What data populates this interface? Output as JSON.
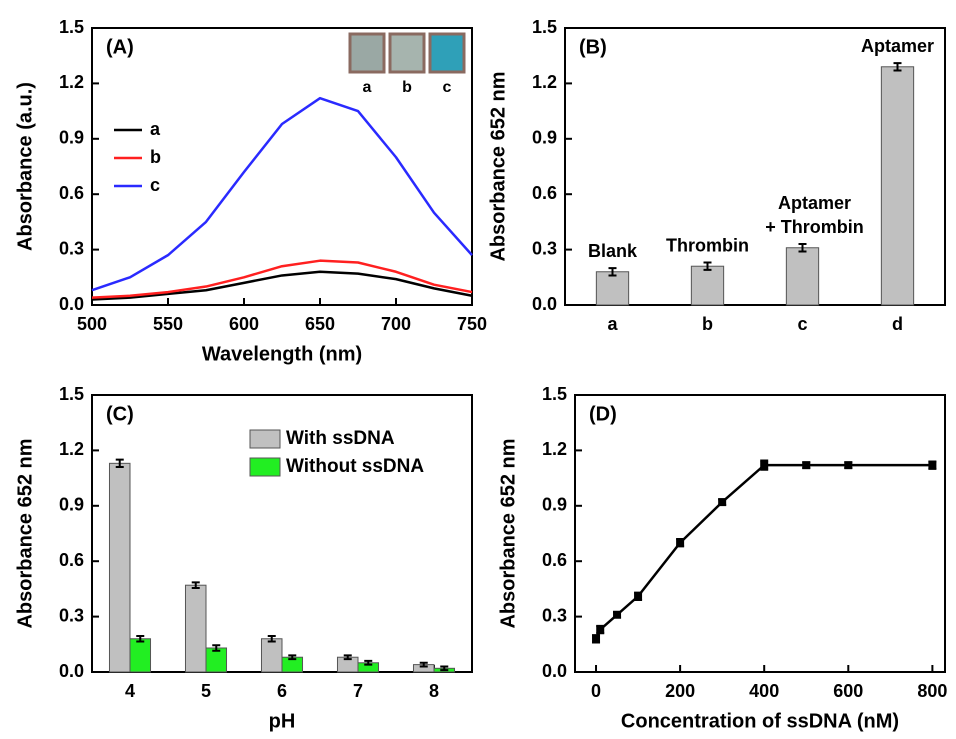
{
  "chart_data": [
    {
      "type": "line",
      "label": "(A)",
      "xlabel": "Wavelength (nm)",
      "ylabel": "Absorbance (a.u.)",
      "x": [
        500,
        525,
        550,
        575,
        600,
        625,
        650,
        675,
        700,
        725,
        750
      ],
      "series": [
        {
          "name": "a",
          "color": "#000000",
          "values": [
            0.03,
            0.04,
            0.06,
            0.08,
            0.12,
            0.16,
            0.18,
            0.17,
            0.14,
            0.09,
            0.05
          ]
        },
        {
          "name": "b",
          "color": "#ff2020",
          "values": [
            0.04,
            0.05,
            0.07,
            0.1,
            0.15,
            0.21,
            0.24,
            0.23,
            0.18,
            0.11,
            0.07
          ]
        },
        {
          "name": "c",
          "color": "#2a2aff",
          "values": [
            0.08,
            0.15,
            0.27,
            0.45,
            0.72,
            0.98,
            1.12,
            1.05,
            0.8,
            0.5,
            0.27
          ]
        }
      ],
      "xlim": [
        500,
        750
      ],
      "xticks": [
        500,
        550,
        600,
        650,
        700,
        750
      ],
      "ylim": [
        0,
        1.5
      ],
      "yticks": [
        {
          "value": 0,
          "label": "0.0"
        },
        0.3,
        0.6,
        0.9,
        1.2,
        1.5
      ],
      "legend": "left",
      "inset_labels": [
        "a",
        "b",
        "c"
      ]
    },
    {
      "type": "bar",
      "label": "(B)",
      "ylabel": "Absorbance 652 nm",
      "categories": [
        "a",
        "b",
        "c",
        "d"
      ],
      "values": [
        0.18,
        0.21,
        0.31,
        1.29
      ],
      "errors": [
        0.02,
        0.02,
        0.02,
        0.02
      ],
      "bar_labels": [
        [
          "Blank"
        ],
        [
          "Thrombin"
        ],
        [
          "Aptamer",
          "+ Thrombin"
        ],
        [
          "Aptamer"
        ]
      ],
      "color": "#c0c0c0",
      "ylim": [
        0,
        1.5
      ],
      "yticks": [
        {
          "value": 0,
          "label": "0.0"
        },
        0.3,
        0.6,
        0.9,
        1.2,
        1.5
      ]
    },
    {
      "type": "grouped_bar",
      "label": "(C)",
      "xlabel": "pH",
      "ylabel": "Absorbance 652 nm",
      "categories": [
        "4",
        "5",
        "6",
        "7",
        "8"
      ],
      "series": [
        {
          "name": "With ssDNA",
          "color": "#c0c0c0",
          "values": [
            1.13,
            0.47,
            0.18,
            0.08,
            0.04
          ],
          "errors": [
            0.02,
            0.015,
            0.015,
            0.01,
            0.01
          ]
        },
        {
          "name": "Without ssDNA",
          "color": "#22ee22",
          "values": [
            0.18,
            0.13,
            0.08,
            0.05,
            0.02
          ],
          "errors": [
            0.015,
            0.015,
            0.01,
            0.01,
            0.01
          ]
        }
      ],
      "ylim": [
        0,
        1.5
      ],
      "yticks": [
        {
          "value": 0,
          "label": "0.0"
        },
        0.3,
        0.6,
        0.9,
        1.2,
        1.5
      ],
      "legend": "upper right"
    },
    {
      "type": "line",
      "label": "(D)",
      "xlabel": "Concentration of ssDNA (nM)",
      "ylabel": "Absorbance 652 nm",
      "x": [
        0,
        10,
        50,
        100,
        200,
        300,
        400,
        500,
        600,
        800
      ],
      "series": [
        {
          "color": "#000000",
          "values": [
            0.18,
            0.23,
            0.31,
            0.41,
            0.7,
            0.92,
            1.12,
            1.12,
            1.12,
            1.12
          ],
          "errors": [
            0.02,
            0.02,
            0.015,
            0.02,
            0.02,
            0.015,
            0.025,
            0.015,
            0.015,
            0.02
          ]
        }
      ],
      "markers": true,
      "xlim": [
        -50,
        830
      ],
      "xticks": [
        0,
        200,
        400,
        600,
        800
      ],
      "ylim": [
        0,
        1.5
      ],
      "yticks": [
        {
          "value": 0,
          "label": "0.0"
        },
        0.3,
        0.6,
        0.9,
        1.2,
        1.5
      ]
    }
  ]
}
